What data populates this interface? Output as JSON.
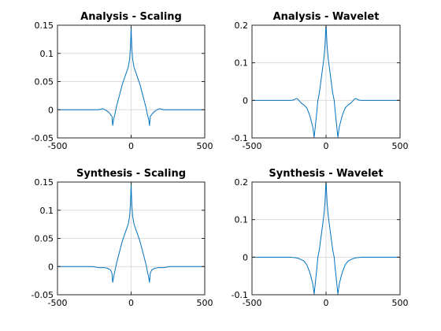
{
  "chart_data": [
    {
      "type": "line",
      "title": "Analysis - Scaling",
      "xlim": [
        -500,
        500
      ],
      "ylim": [
        -0.05,
        0.15
      ],
      "xticks": [
        -500,
        0,
        500
      ],
      "yticks": [
        -0.05,
        0,
        0.05,
        0.1,
        0.15
      ],
      "xtick_labels": [
        "-500",
        "0",
        "500"
      ],
      "ytick_labels": [
        "-0.05",
        "0",
        "0.05",
        "0.1",
        "0.15"
      ],
      "grid": true,
      "series": [
        {
          "color": "#0072bd",
          "x": [
            -500,
            -220,
            -205,
            -195,
            -185,
            -170,
            -150,
            -130,
            -125,
            -120,
            -112,
            -100,
            -80,
            -60,
            -40,
            -20,
            -10,
            -5,
            -2,
            0,
            2,
            5,
            10,
            20,
            40,
            60,
            80,
            100,
            112,
            120,
            125,
            130,
            150,
            170,
            185,
            195,
            205,
            220,
            500
          ],
          "y": [
            0,
            0,
            0.001,
            0.002,
            0.001,
            -0.001,
            -0.005,
            -0.012,
            -0.028,
            -0.018,
            -0.01,
            0.005,
            0.025,
            0.045,
            0.06,
            0.075,
            0.09,
            0.11,
            0.13,
            0.148,
            0.13,
            0.11,
            0.09,
            0.075,
            0.06,
            0.045,
            0.025,
            0.005,
            -0.01,
            -0.018,
            -0.028,
            -0.012,
            -0.005,
            -0.001,
            0.001,
            0.002,
            0.001,
            0,
            0
          ]
        }
      ]
    },
    {
      "type": "line",
      "title": "Analysis - Wavelet",
      "xlim": [
        -500,
        500
      ],
      "ylim": [
        -0.1,
        0.2
      ],
      "xticks": [
        -500,
        0,
        500
      ],
      "yticks": [
        -0.1,
        0,
        0.1,
        0.2
      ],
      "xtick_labels": [
        "-500",
        "0",
        "500"
      ],
      "ytick_labels": [
        "-0.1",
        "0",
        "0.1",
        "0.2"
      ],
      "grid": true,
      "series": [
        {
          "color": "#0072bd",
          "x": [
            -500,
            -240,
            -220,
            -210,
            -200,
            -190,
            -180,
            -165,
            -150,
            -130,
            -110,
            -90,
            -80,
            -70,
            -62,
            -55,
            -45,
            -35,
            -25,
            -15,
            -8,
            -4,
            -2,
            0,
            2,
            4,
            8,
            15,
            25,
            35,
            45,
            55,
            62,
            70,
            80,
            90,
            110,
            130,
            150,
            165,
            180,
            190,
            200,
            210,
            220,
            240,
            500
          ],
          "y": [
            0,
            0,
            0.001,
            0.003,
            0.005,
            0.003,
            -0.002,
            -0.008,
            -0.012,
            -0.02,
            -0.04,
            -0.07,
            -0.098,
            -0.06,
            -0.03,
            0,
            0.02,
            0.05,
            0.08,
            0.11,
            0.14,
            0.17,
            0.19,
            0.2,
            0.19,
            0.17,
            0.14,
            0.11,
            0.08,
            0.05,
            0.02,
            0,
            -0.03,
            -0.06,
            -0.098,
            -0.07,
            -0.04,
            -0.02,
            -0.012,
            -0.008,
            -0.002,
            0.003,
            0.005,
            0.003,
            0.001,
            0,
            0
          ]
        }
      ]
    },
    {
      "type": "line",
      "title": "Synthesis - Scaling",
      "xlim": [
        -500,
        500
      ],
      "ylim": [
        -0.05,
        0.15
      ],
      "xticks": [
        -500,
        0,
        500
      ],
      "yticks": [
        -0.05,
        0,
        0.05,
        0.1,
        0.15
      ],
      "xtick_labels": [
        "-500",
        "0",
        "500"
      ],
      "ytick_labels": [
        "-0.05",
        "0",
        "0.05",
        "0.1",
        "0.15"
      ],
      "grid": true,
      "series": [
        {
          "color": "#0072bd",
          "x": [
            -500,
            -260,
            -240,
            -220,
            -200,
            -180,
            -160,
            -140,
            -130,
            -125,
            -120,
            -112,
            -100,
            -80,
            -60,
            -40,
            -20,
            -10,
            -5,
            -2,
            0,
            2,
            5,
            10,
            20,
            40,
            60,
            80,
            100,
            112,
            120,
            125,
            130,
            140,
            160,
            180,
            200,
            220,
            240,
            260,
            500
          ],
          "y": [
            0,
            0,
            -0.001,
            -0.002,
            -0.002,
            -0.002,
            -0.003,
            -0.006,
            -0.012,
            -0.028,
            -0.02,
            -0.01,
            0.005,
            0.025,
            0.045,
            0.06,
            0.075,
            0.09,
            0.11,
            0.13,
            0.148,
            0.13,
            0.11,
            0.09,
            0.075,
            0.06,
            0.045,
            0.025,
            0.005,
            -0.01,
            -0.02,
            -0.028,
            -0.012,
            -0.006,
            -0.003,
            -0.002,
            -0.002,
            -0.002,
            -0.001,
            0,
            0
          ]
        }
      ]
    },
    {
      "type": "line",
      "title": "Synthesis - Wavelet",
      "xlim": [
        -500,
        500
      ],
      "ylim": [
        -0.1,
        0.2
      ],
      "xticks": [
        -500,
        0,
        500
      ],
      "yticks": [
        -0.1,
        0,
        0.1,
        0.2
      ],
      "xtick_labels": [
        "-500",
        "0",
        "500"
      ],
      "ytick_labels": [
        "-0.1",
        "0",
        "0.1",
        "0.2"
      ],
      "grid": true,
      "series": [
        {
          "color": "#0072bd",
          "x": [
            -500,
            -240,
            -220,
            -200,
            -180,
            -160,
            -150,
            -130,
            -110,
            -90,
            -80,
            -70,
            -62,
            -55,
            -45,
            -35,
            -25,
            -15,
            -8,
            -4,
            -2,
            0,
            2,
            4,
            8,
            15,
            25,
            35,
            45,
            55,
            62,
            70,
            80,
            90,
            110,
            130,
            150,
            160,
            180,
            200,
            220,
            240,
            500
          ],
          "y": [
            0,
            0,
            -0.001,
            -0.002,
            -0.004,
            -0.008,
            -0.01,
            -0.02,
            -0.04,
            -0.07,
            -0.098,
            -0.06,
            -0.03,
            0,
            0.02,
            0.05,
            0.08,
            0.11,
            0.14,
            0.17,
            0.19,
            0.2,
            0.19,
            0.17,
            0.14,
            0.11,
            0.08,
            0.05,
            0.02,
            0,
            -0.03,
            -0.06,
            -0.098,
            -0.07,
            -0.04,
            -0.02,
            -0.01,
            -0.008,
            -0.004,
            -0.002,
            -0.001,
            0,
            0
          ]
        }
      ]
    }
  ]
}
